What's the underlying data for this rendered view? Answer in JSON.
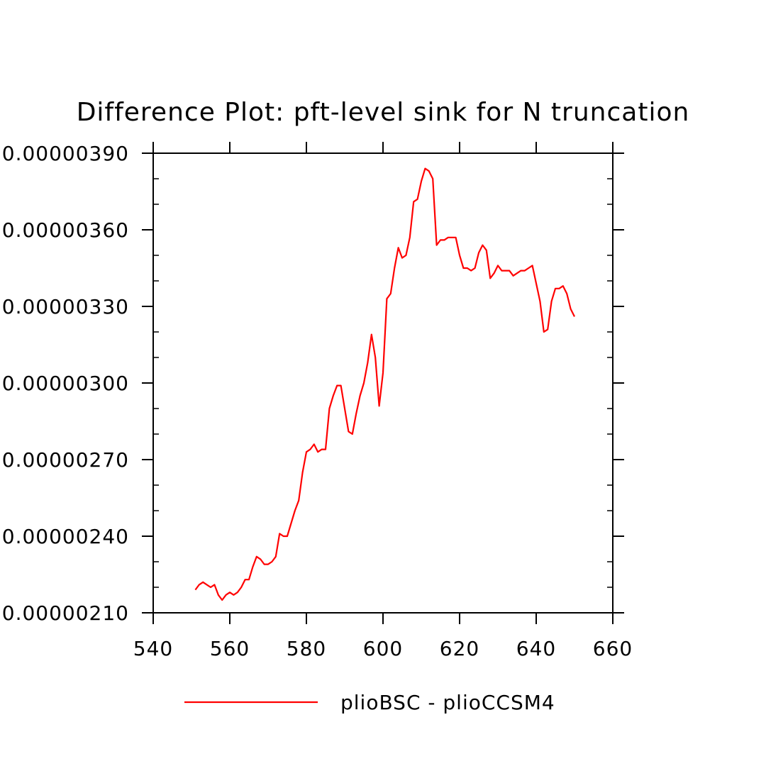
{
  "chart_data": {
    "type": "line",
    "title": "Difference Plot: pft-level sink for N truncation",
    "xlabel": "",
    "ylabel": "",
    "xlim": [
      540,
      660
    ],
    "ylim": [
      2.1e-06,
      3.9e-06
    ],
    "x_ticks": [
      540,
      560,
      580,
      600,
      620,
      640,
      660
    ],
    "x_tick_labels": [
      "540",
      "560",
      "580",
      "600",
      "620",
      "640",
      "660"
    ],
    "y_ticks": [
      2.1e-06,
      2.4e-06,
      2.7e-06,
      3e-06,
      3.3e-06,
      3.6e-06,
      3.9e-06
    ],
    "y_tick_labels": [
      "0.00000210",
      "0.00000240",
      "0.00000270",
      "0.00000300",
      "0.00000330",
      "0.00000360",
      "0.00000390"
    ],
    "grid": false,
    "legend_position": "bottom",
    "series": [
      {
        "name": "plioBSC - plioCCSM4",
        "color": "#ff0000",
        "x": [
          551,
          552,
          553,
          554,
          555,
          556,
          557,
          558,
          559,
          560,
          561,
          562,
          563,
          564,
          565,
          566,
          567,
          568,
          569,
          570,
          571,
          572,
          573,
          574,
          575,
          576,
          577,
          578,
          579,
          580,
          581,
          582,
          583,
          584,
          585,
          586,
          587,
          588,
          589,
          590,
          591,
          592,
          593,
          594,
          595,
          596,
          597,
          598,
          599,
          600,
          601,
          602,
          603,
          604,
          605,
          606,
          607,
          608,
          609,
          610,
          611,
          612,
          613,
          614,
          615,
          616,
          617,
          618,
          619,
          620,
          621,
          622,
          623,
          624,
          625,
          626,
          627,
          628,
          629,
          630,
          631,
          632,
          633,
          634,
          635,
          636,
          637,
          638,
          639,
          640,
          641,
          642,
          643,
          644,
          645,
          646,
          647,
          648,
          649,
          650
        ],
        "y": [
          2.19e-06,
          2.21e-06,
          2.22e-06,
          2.21e-06,
          2.2e-06,
          2.21e-06,
          2.17e-06,
          2.15e-06,
          2.17e-06,
          2.18e-06,
          2.17e-06,
          2.18e-06,
          2.2e-06,
          2.23e-06,
          2.23e-06,
          2.28e-06,
          2.32e-06,
          2.31e-06,
          2.29e-06,
          2.29e-06,
          2.3e-06,
          2.32e-06,
          2.41e-06,
          2.4e-06,
          2.4e-06,
          2.45e-06,
          2.5e-06,
          2.54e-06,
          2.65e-06,
          2.73e-06,
          2.74e-06,
          2.76e-06,
          2.73e-06,
          2.74e-06,
          2.74e-06,
          2.9e-06,
          2.95e-06,
          2.99e-06,
          2.99e-06,
          2.9e-06,
          2.81e-06,
          2.8e-06,
          2.88e-06,
          2.95e-06,
          3e-06,
          3.08e-06,
          3.19e-06,
          3.1e-06,
          2.91e-06,
          3.04e-06,
          3.33e-06,
          3.35e-06,
          3.45e-06,
          3.53e-06,
          3.49e-06,
          3.5e-06,
          3.57e-06,
          3.71e-06,
          3.72e-06,
          3.79e-06,
          3.84e-06,
          3.83e-06,
          3.8e-06,
          3.54e-06,
          3.56e-06,
          3.56e-06,
          3.57e-06,
          3.57e-06,
          3.57e-06,
          3.5e-06,
          3.45e-06,
          3.45e-06,
          3.44e-06,
          3.45e-06,
          3.51e-06,
          3.54e-06,
          3.52e-06,
          3.41e-06,
          3.43e-06,
          3.46e-06,
          3.44e-06,
          3.44e-06,
          3.44e-06,
          3.42e-06,
          3.43e-06,
          3.44e-06,
          3.44e-06,
          3.45e-06,
          3.46e-06,
          3.39e-06,
          3.32e-06,
          3.2e-06,
          3.21e-06,
          3.32e-06,
          3.37e-06,
          3.37e-06,
          3.38e-06,
          3.35e-06,
          3.29e-06,
          3.26e-06
        ]
      }
    ]
  }
}
